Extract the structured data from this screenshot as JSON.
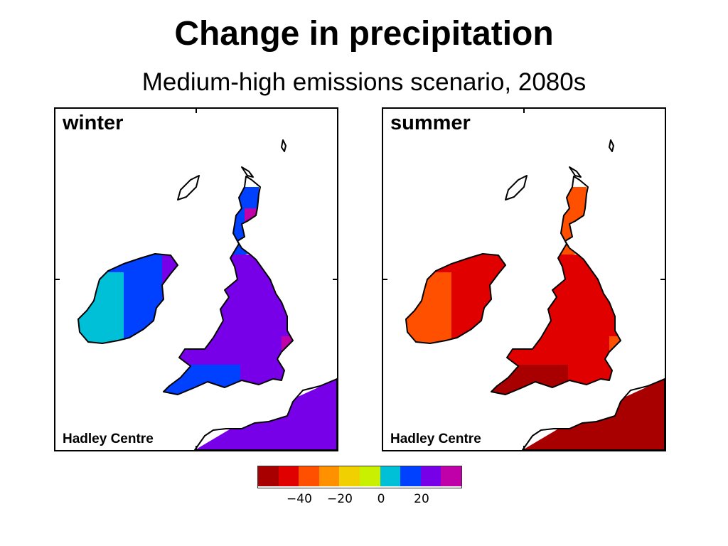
{
  "title": "Change in precipitation",
  "subtitle": "Medium-high emissions scenario, 2080s",
  "panels": [
    {
      "id": "winter",
      "label": "winter",
      "credit": "Hadley Centre"
    },
    {
      "id": "summer",
      "label": "summer",
      "credit": "Hadley Centre"
    }
  ],
  "legend": {
    "colors": [
      "#a80000",
      "#e00000",
      "#ff5000",
      "#ff9000",
      "#f0d000",
      "#c8f000",
      "#00c0d8",
      "#0040ff",
      "#7800e8",
      "#c000a8"
    ],
    "tick_labels": [
      "−40",
      "−20",
      "0",
      "20"
    ]
  },
  "map_colors": {
    "coast": "#000000",
    "winter": {
      "sea": "#7800e8",
      "fringe": "#0040ff",
      "scotland": "#0040ff",
      "highland": "#00c0d8",
      "ireland": "#0040ff",
      "ireland_west": "#00c0d8",
      "england": "#7800e8",
      "east_edge": "#c000a8"
    },
    "summer": {
      "sea": "#a80000",
      "fringe": "#a80000",
      "scotland": "#ff5000",
      "highland": "#c8f000",
      "ireland": "#e00000",
      "ireland_west": "#ff5000",
      "england": "#e00000",
      "east_edge": "#ff5000"
    }
  }
}
